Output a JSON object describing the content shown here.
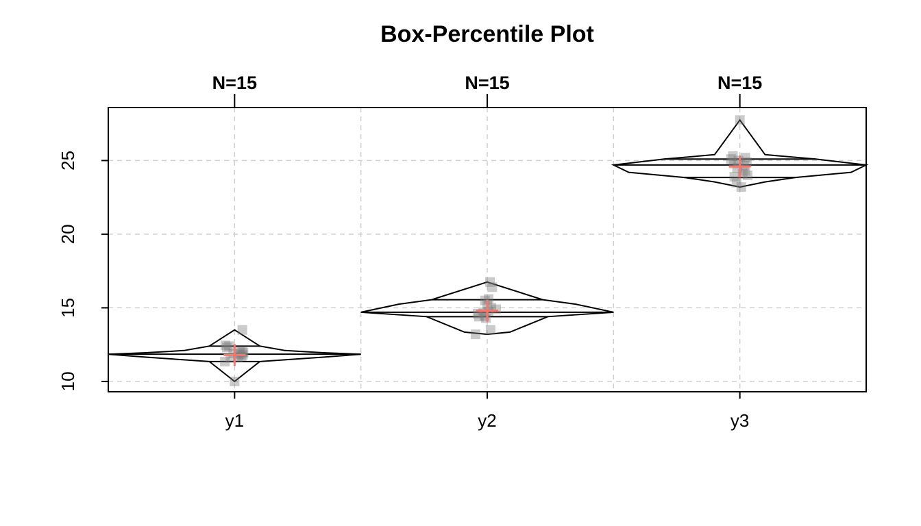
{
  "chart_data": {
    "type": "box-percentile",
    "title": "Box-Percentile Plot",
    "xlabel": "",
    "ylabel": "",
    "categories": [
      "y1",
      "y2",
      "y3"
    ],
    "n_labels": [
      "N=15",
      "N=15",
      "N=15"
    ],
    "ylim": [
      9.3,
      28.6
    ],
    "yticks": [
      10,
      15,
      20,
      25
    ],
    "ytick_labels": [
      "10",
      "15",
      "20",
      "25"
    ],
    "grid": true,
    "groups": [
      {
        "name": "y1",
        "n": 15,
        "mean": 11.8,
        "quartiles": [
          11.35,
          11.85,
          12.4
        ],
        "points": [
          10.0,
          11.35,
          11.6,
          11.65,
          11.7,
          11.8,
          11.85,
          11.9,
          11.95,
          12.0,
          12.05,
          12.3,
          12.4,
          12.45,
          13.5
        ],
        "jitter": [
          0,
          -0.35,
          -0.15,
          0.12,
          0.25,
          0.3,
          0.18,
          -0.05,
          0.32,
          0.28,
          0.2,
          -0.28,
          -0.2,
          -0.33,
          0.28
        ],
        "percentile_curve": [
          [
            10.0,
            0.0
          ],
          [
            11.35,
            0.2
          ],
          [
            11.65,
            0.7
          ],
          [
            11.85,
            1.0
          ],
          [
            11.95,
            0.7
          ],
          [
            12.1,
            0.4
          ],
          [
            12.4,
            0.2
          ],
          [
            13.5,
            0.0
          ]
        ]
      },
      {
        "name": "y2",
        "n": 15,
        "mean": 14.8,
        "quartiles": [
          14.4,
          14.7,
          15.55
        ],
        "points": [
          13.2,
          13.5,
          14.3,
          14.4,
          14.45,
          14.6,
          14.7,
          14.75,
          14.9,
          15.0,
          15.2,
          15.5,
          15.6,
          16.4,
          16.75
        ],
        "jitter": [
          -0.42,
          0.12,
          -0.05,
          -0.3,
          -0.1,
          -0.35,
          -0.15,
          0.05,
          0.32,
          0.15,
          0.0,
          -0.08,
          0.05,
          0.18,
          0.1
        ],
        "percentile_curve": [
          [
            13.2,
            0.0
          ],
          [
            13.35,
            0.18
          ],
          [
            14.4,
            0.48
          ],
          [
            14.7,
            1.0
          ],
          [
            15.25,
            0.7
          ],
          [
            15.55,
            0.44
          ],
          [
            16.75,
            0.0
          ]
        ]
      },
      {
        "name": "y3",
        "n": 15,
        "mean": 24.6,
        "quartiles": [
          23.85,
          24.7,
          25.1
        ],
        "points": [
          23.2,
          23.5,
          23.9,
          24.0,
          24.1,
          24.3,
          24.5,
          24.65,
          24.8,
          24.9,
          25.0,
          25.1,
          25.2,
          25.3,
          27.75
        ],
        "jitter": [
          0.05,
          -0.12,
          -0.2,
          0.28,
          0.1,
          0.2,
          -0.1,
          0.15,
          -0.22,
          0.25,
          -0.05,
          -0.32,
          0.2,
          -0.25,
          0.0
        ],
        "percentile_curve": [
          [
            23.2,
            0.0
          ],
          [
            23.55,
            0.2
          ],
          [
            23.85,
            0.44
          ],
          [
            24.2,
            0.88
          ],
          [
            24.7,
            1.0
          ],
          [
            25.1,
            0.6
          ],
          [
            25.4,
            0.2
          ],
          [
            27.75,
            0.0
          ]
        ]
      }
    ]
  }
}
